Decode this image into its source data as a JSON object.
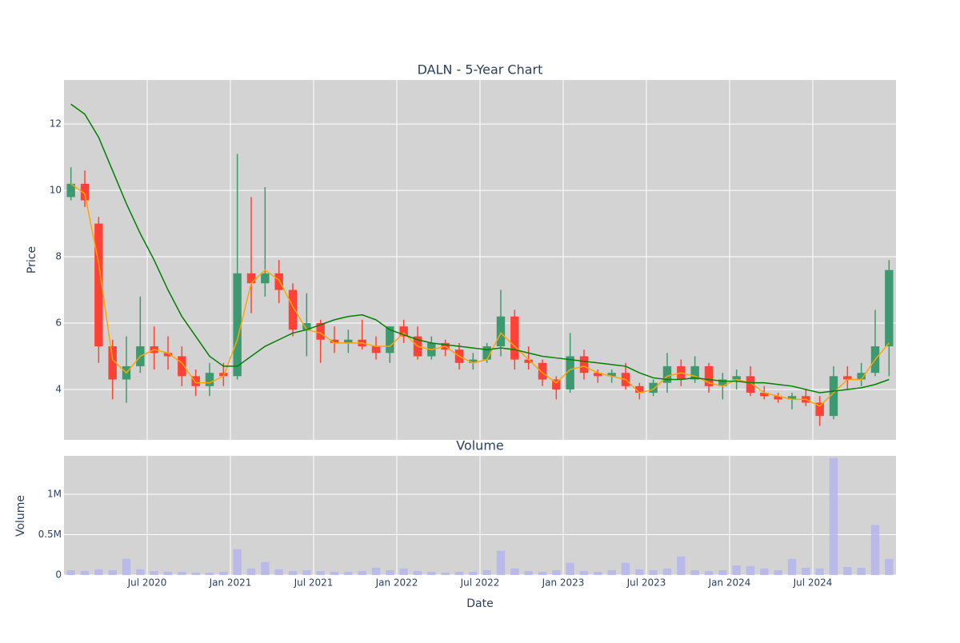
{
  "chart_data": [
    {
      "type": "candlestick",
      "title": "DALN - 5-Year Chart",
      "y_label": "Price",
      "x": [
        "2020-01",
        "2020-02",
        "2020-03",
        "2020-04",
        "2020-05",
        "2020-06",
        "2020-07",
        "2020-08",
        "2020-09",
        "2020-10",
        "2020-11",
        "2020-12",
        "2021-01",
        "2021-02",
        "2021-03",
        "2021-04",
        "2021-05",
        "2021-06",
        "2021-07",
        "2021-08",
        "2021-09",
        "2021-10",
        "2021-11",
        "2021-12",
        "2022-01",
        "2022-02",
        "2022-03",
        "2022-04",
        "2022-05",
        "2022-06",
        "2022-07",
        "2022-08",
        "2022-09",
        "2022-10",
        "2022-11",
        "2022-12",
        "2023-01",
        "2023-02",
        "2023-03",
        "2023-04",
        "2023-05",
        "2023-06",
        "2023-07",
        "2023-08",
        "2023-09",
        "2023-10",
        "2023-11",
        "2023-12",
        "2024-01",
        "2024-02",
        "2024-03",
        "2024-04",
        "2024-05",
        "2024-06",
        "2024-07",
        "2024-08",
        "2024-09",
        "2024-10",
        "2024-11",
        "2024-12"
      ],
      "open": [
        9.8,
        10.2,
        9.0,
        5.3,
        4.3,
        4.7,
        5.3,
        5.1,
        5.0,
        4.4,
        4.1,
        4.5,
        4.4,
        7.5,
        7.2,
        7.5,
        7.0,
        5.8,
        6.0,
        5.5,
        5.4,
        5.5,
        5.3,
        5.1,
        5.9,
        5.6,
        5.0,
        5.4,
        5.2,
        4.8,
        4.9,
        5.3,
        6.2,
        4.9,
        4.8,
        4.3,
        4.0,
        5.0,
        4.5,
        4.4,
        4.5,
        4.1,
        3.9,
        4.2,
        4.7,
        4.3,
        4.7,
        4.1,
        4.3,
        4.4,
        3.9,
        3.8,
        3.7,
        3.8,
        3.6,
        3.2,
        4.4,
        4.3,
        4.5,
        5.3
      ],
      "high": [
        10.7,
        10.6,
        9.2,
        5.5,
        5.6,
        6.8,
        5.9,
        5.6,
        5.3,
        4.6,
        4.8,
        4.8,
        11.1,
        9.8,
        10.1,
        7.9,
        7.2,
        6.9,
        6.1,
        5.9,
        5.8,
        6.1,
        5.6,
        5.9,
        6.1,
        5.9,
        5.6,
        5.5,
        5.4,
        5.1,
        5.4,
        7.0,
        6.4,
        5.3,
        4.9,
        4.4,
        5.7,
        5.2,
        4.6,
        4.6,
        4.8,
        4.2,
        4.3,
        5.1,
        4.9,
        5.0,
        4.8,
        4.5,
        4.6,
        4.7,
        4.1,
        3.9,
        3.9,
        4.0,
        3.8,
        4.7,
        4.7,
        4.8,
        6.4,
        7.9
      ],
      "low": [
        9.7,
        9.5,
        4.8,
        3.7,
        3.6,
        4.5,
        4.6,
        4.6,
        4.1,
        3.8,
        3.8,
        4.1,
        4.3,
        6.3,
        6.8,
        6.6,
        5.6,
        5.0,
        4.8,
        5.1,
        5.1,
        5.2,
        4.9,
        4.8,
        5.4,
        4.9,
        4.9,
        5.0,
        4.6,
        4.6,
        4.8,
        5.0,
        4.6,
        4.6,
        4.1,
        3.7,
        3.9,
        4.3,
        4.2,
        4.2,
        4.0,
        3.7,
        3.8,
        3.9,
        4.1,
        4.2,
        3.9,
        3.7,
        4.0,
        3.8,
        3.7,
        3.6,
        3.4,
        3.5,
        2.9,
        3.1,
        4.0,
        4.1,
        4.4,
        4.4
      ],
      "close": [
        10.2,
        9.7,
        5.3,
        4.3,
        4.7,
        5.3,
        5.1,
        5.0,
        4.4,
        4.1,
        4.5,
        4.4,
        7.5,
        7.2,
        7.5,
        7.0,
        5.8,
        6.0,
        5.5,
        5.4,
        5.5,
        5.3,
        5.1,
        5.9,
        5.6,
        5.0,
        5.4,
        5.2,
        4.8,
        4.9,
        5.3,
        6.2,
        4.9,
        4.8,
        4.3,
        4.0,
        5.0,
        4.5,
        4.4,
        4.5,
        4.1,
        3.9,
        4.2,
        4.7,
        4.3,
        4.7,
        4.1,
        4.3,
        4.4,
        3.9,
        3.8,
        3.7,
        3.8,
        3.6,
        3.2,
        4.4,
        4.3,
        4.5,
        5.3,
        7.6
      ],
      "increasing_color": "#3d9970",
      "decreasing_color": "#ff4136",
      "lines": [
        {
          "color": "orange",
          "values": [
            10.2,
            9.9,
            7.8,
            4.9,
            4.5,
            5.0,
            5.2,
            5.1,
            4.8,
            4.2,
            4.2,
            4.4,
            5.5,
            7.2,
            7.6,
            7.3,
            6.5,
            5.8,
            5.7,
            5.4,
            5.4,
            5.4,
            5.3,
            5.3,
            5.7,
            5.3,
            5.2,
            5.3,
            5.0,
            4.8,
            4.9,
            5.7,
            5.3,
            4.9,
            4.5,
            4.2,
            4.6,
            4.7,
            4.5,
            4.4,
            4.3,
            3.9,
            4.0,
            4.4,
            4.5,
            4.4,
            4.2,
            4.1,
            4.3,
            4.2,
            3.9,
            3.8,
            3.7,
            3.7,
            3.5,
            3.9,
            4.3,
            4.3,
            4.9,
            5.4
          ]
        },
        {
          "color": "green",
          "values": [
            12.6,
            12.3,
            11.6,
            10.6,
            9.6,
            8.7,
            7.9,
            7.0,
            6.2,
            5.6,
            5.0,
            4.7,
            4.7,
            5.0,
            5.3,
            5.5,
            5.7,
            5.8,
            5.95,
            6.1,
            6.2,
            6.25,
            6.1,
            5.8,
            5.65,
            5.5,
            5.4,
            5.35,
            5.3,
            5.25,
            5.2,
            5.25,
            5.2,
            5.1,
            5.0,
            4.95,
            4.9,
            4.85,
            4.8,
            4.75,
            4.7,
            4.5,
            4.35,
            4.3,
            4.3,
            4.35,
            4.3,
            4.25,
            4.25,
            4.2,
            4.2,
            4.15,
            4.1,
            4.0,
            3.9,
            3.95,
            4.0,
            4.05,
            4.15,
            4.3
          ]
        }
      ],
      "ylim": [
        2.48,
        13.33
      ],
      "yticks": [
        4,
        6,
        8,
        10,
        12
      ],
      "grid": true
    },
    {
      "type": "bar",
      "title": "Volume",
      "y_label": "Volume",
      "x_label": "Date",
      "x": [
        "2020-01",
        "2020-02",
        "2020-03",
        "2020-04",
        "2020-05",
        "2020-06",
        "2020-07",
        "2020-08",
        "2020-09",
        "2020-10",
        "2020-11",
        "2020-12",
        "2021-01",
        "2021-02",
        "2021-03",
        "2021-04",
        "2021-05",
        "2021-06",
        "2021-07",
        "2021-08",
        "2021-09",
        "2021-10",
        "2021-11",
        "2021-12",
        "2022-01",
        "2022-02",
        "2022-03",
        "2022-04",
        "2022-05",
        "2022-06",
        "2022-07",
        "2022-08",
        "2022-09",
        "2022-10",
        "2022-11",
        "2022-12",
        "2023-01",
        "2023-02",
        "2023-03",
        "2023-04",
        "2023-05",
        "2023-06",
        "2023-07",
        "2023-08",
        "2023-09",
        "2023-10",
        "2023-11",
        "2023-12",
        "2024-01",
        "2024-02",
        "2024-03",
        "2024-04",
        "2024-05",
        "2024-06",
        "2024-07",
        "2024-08",
        "2024-09",
        "2024-10",
        "2024-11",
        "2024-12"
      ],
      "values": [
        60000,
        50000,
        70000,
        60000,
        200000,
        70000,
        50000,
        40000,
        40000,
        30000,
        30000,
        40000,
        320000,
        80000,
        160000,
        70000,
        50000,
        60000,
        50000,
        40000,
        40000,
        50000,
        90000,
        60000,
        80000,
        50000,
        40000,
        30000,
        40000,
        40000,
        60000,
        300000,
        80000,
        50000,
        40000,
        60000,
        150000,
        50000,
        40000,
        60000,
        150000,
        70000,
        60000,
        80000,
        230000,
        60000,
        50000,
        60000,
        120000,
        110000,
        80000,
        60000,
        200000,
        90000,
        80000,
        1450000,
        100000,
        90000,
        620000,
        200000
      ],
      "color": "#b4b4f0",
      "xlim": [
        "2020-01",
        "2024-12"
      ],
      "xticks": [
        {
          "value": "2020-07",
          "label": "Jul 2020"
        },
        {
          "value": "2021-01",
          "label": "Jan 2021"
        },
        {
          "value": "2021-07",
          "label": "Jul 2021"
        },
        {
          "value": "2022-01",
          "label": "Jan 2022"
        },
        {
          "value": "2022-07",
          "label": "Jul 2022"
        },
        {
          "value": "2023-01",
          "label": "Jan 2023"
        },
        {
          "value": "2023-07",
          "label": "Jul 2023"
        },
        {
          "value": "2024-01",
          "label": "Jan 2024"
        },
        {
          "value": "2024-07",
          "label": "Jul 2024"
        }
      ],
      "ylim": [
        0,
        1475000
      ],
      "yticks": [
        0,
        {
          "value": 500000,
          "label": "0.5M"
        },
        {
          "value": 1000000,
          "label": "1M"
        }
      ],
      "grid": true
    }
  ]
}
